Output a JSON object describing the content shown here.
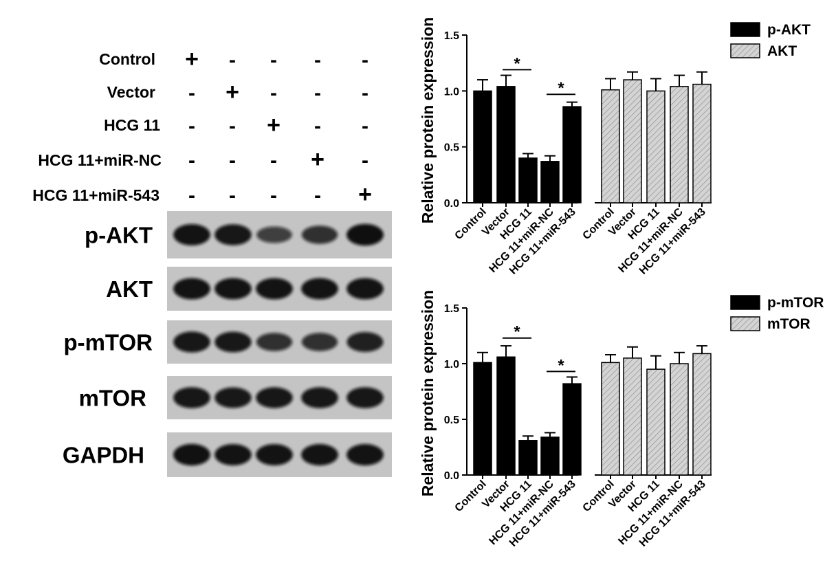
{
  "blot_panel": {
    "group_labels": [
      "Control",
      "Vector",
      "HCG 11",
      "HCG 11+miR-NC",
      "HCG 11+miR-543"
    ],
    "treatment_matrix": [
      [
        "+",
        "-",
        "-",
        "-",
        "-"
      ],
      [
        "-",
        "+",
        "-",
        "-",
        "-"
      ],
      [
        "-",
        "-",
        "+",
        "-",
        "-"
      ],
      [
        "-",
        "-",
        "-",
        "+",
        "-"
      ],
      [
        "-",
        "-",
        "-",
        "-",
        "+"
      ]
    ],
    "blot_rows": [
      {
        "label": "p-AKT",
        "band_intensity": [
          0.95,
          0.93,
          0.6,
          0.72,
          0.98
        ]
      },
      {
        "label": "AKT",
        "band_intensity": [
          0.95,
          0.95,
          0.95,
          0.95,
          0.95
        ]
      },
      {
        "label": "p-mTOR",
        "band_intensity": [
          0.92,
          0.9,
          0.72,
          0.72,
          0.85
        ]
      },
      {
        "label": "mTOR",
        "band_intensity": [
          0.93,
          0.9,
          0.92,
          0.93,
          0.93
        ]
      },
      {
        "label": "GAPDH",
        "band_intensity": [
          0.97,
          0.95,
          0.95,
          0.96,
          0.96
        ]
      }
    ],
    "colors": {
      "band": "#0d0d0d",
      "membrane": "#c4c4c4"
    }
  },
  "chart_data": [
    {
      "type": "bar",
      "ylabel": "Relative  protein expression",
      "ylim": [
        0,
        1.5
      ],
      "yticks": [
        0.0,
        0.5,
        1.0,
        1.5
      ],
      "ytick_labels": [
        "0.0",
        "0.5",
        "1.0",
        "1.5"
      ],
      "categories": [
        "Control",
        "Vector",
        "HCG 11",
        "HCG 11+miR-NC",
        "HCG 11+miR-543"
      ],
      "legend_position": "top-right",
      "series": [
        {
          "name": "p-AKT",
          "pattern": "solid",
          "color": "#000000",
          "values": [
            1.0,
            1.04,
            0.4,
            0.37,
            0.86
          ],
          "errors": [
            0.1,
            0.1,
            0.04,
            0.05,
            0.04
          ]
        },
        {
          "name": "AKT",
          "pattern": "hatched",
          "color": "#d4d4d4",
          "values": [
            1.01,
            1.1,
            1.0,
            1.04,
            1.06
          ],
          "errors": [
            0.1,
            0.07,
            0.11,
            0.1,
            0.11
          ]
        }
      ],
      "significance": [
        {
          "between": [
            1,
            2
          ],
          "y": 1.19,
          "label": "*"
        },
        {
          "between": [
            3,
            4
          ],
          "y": 0.97,
          "label": "*"
        }
      ]
    },
    {
      "type": "bar",
      "ylabel": "Relative  protein expression",
      "ylim": [
        0,
        1.5
      ],
      "yticks": [
        0.0,
        0.5,
        1.0,
        1.5
      ],
      "ytick_labels": [
        "0.0",
        "0.5",
        "1.0",
        "1.5"
      ],
      "categories": [
        "Control",
        "Vector",
        "HCG 11",
        "HCG 11+miR-NC",
        "HCG 11+miR-543"
      ],
      "legend_position": "top-right",
      "series": [
        {
          "name": "p-mTOR",
          "pattern": "solid",
          "color": "#000000",
          "values": [
            1.01,
            1.06,
            0.31,
            0.34,
            0.82
          ],
          "errors": [
            0.09,
            0.1,
            0.04,
            0.04,
            0.06
          ]
        },
        {
          "name": "mTOR",
          "pattern": "hatched",
          "color": "#d4d4d4",
          "values": [
            1.01,
            1.05,
            0.95,
            1.0,
            1.09
          ],
          "errors": [
            0.07,
            0.1,
            0.12,
            0.1,
            0.07
          ]
        }
      ],
      "significance": [
        {
          "between": [
            1,
            2
          ],
          "y": 1.23,
          "label": "*"
        },
        {
          "between": [
            3,
            4
          ],
          "y": 0.93,
          "label": "*"
        }
      ]
    }
  ]
}
